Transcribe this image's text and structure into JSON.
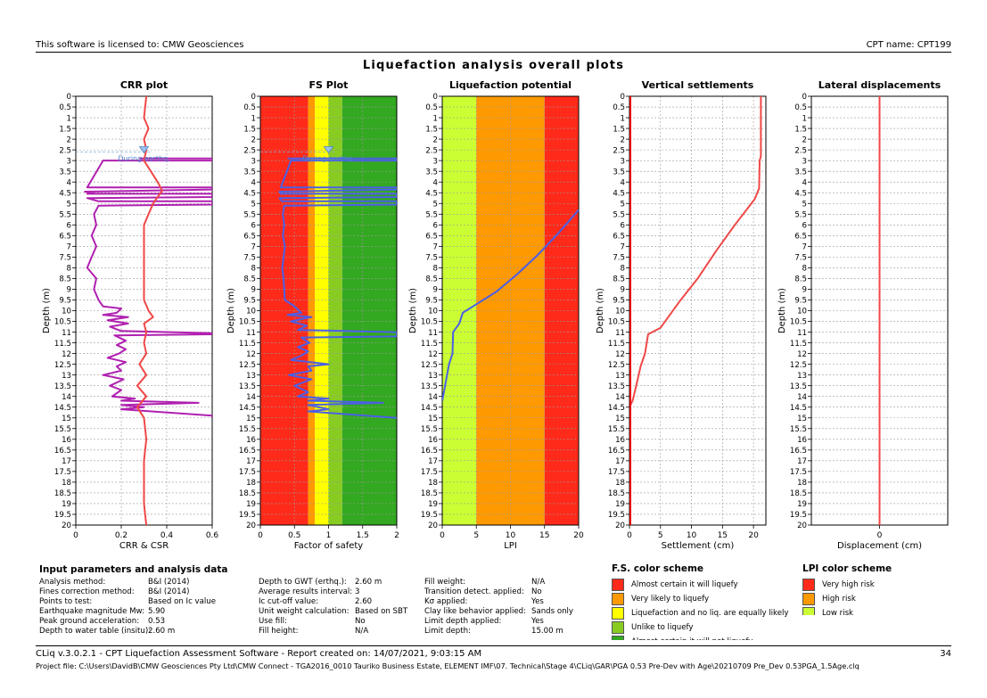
{
  "header": {
    "license": "This software is licensed to: CMW Geosciences",
    "cpt_name": "CPT name: CPT199",
    "title": "Liquefaction analysis overall plots"
  },
  "depth_ticks": [
    "0",
    "0.5",
    "1",
    "1.5",
    "2",
    "2.5",
    "3",
    "3.5",
    "4",
    "4.5",
    "5",
    "5.5",
    "6",
    "6.5",
    "7",
    "7.5",
    "8",
    "8.5",
    "9",
    "9.5",
    "10",
    "10.5",
    "11",
    "11.5",
    "12",
    "12.5",
    "13",
    "13.5",
    "14",
    "14.5",
    "15",
    "15.5",
    "16",
    "16.5",
    "17",
    "17.5",
    "18",
    "18.5",
    "19",
    "19.5",
    "20"
  ],
  "gwt_label": "During earthq.",
  "chart_data": [
    {
      "type": "line",
      "title": "CRR plot",
      "xlabel": "CRR & CSR",
      "ylabel": "Depth (m)",
      "xlim": [
        0,
        0.6
      ],
      "ylim": [
        0,
        20
      ],
      "x_ticks": [
        "0",
        "0.2",
        "0.4",
        "0.6"
      ],
      "grid": true,
      "series": [
        {
          "color": "#b020b0",
          "points": [
            [
              0.28,
              2.9
            ],
            [
              0.6,
              2.9
            ],
            [
              0.6,
              3.0
            ],
            [
              0.12,
              3.0
            ],
            [
              0.05,
              4.25
            ],
            [
              0.6,
              4.25
            ],
            [
              0.6,
              4.35
            ],
            [
              0.04,
              4.45
            ],
            [
              0.08,
              4.5
            ],
            [
              0.05,
              4.55
            ],
            [
              0.6,
              4.55
            ],
            [
              0.6,
              4.7
            ],
            [
              0.05,
              4.75
            ],
            [
              0.1,
              4.9
            ],
            [
              0.6,
              4.9
            ],
            [
              0.6,
              5.05
            ],
            [
              0.1,
              5.1
            ],
            [
              0.08,
              5.5
            ],
            [
              0.09,
              6
            ],
            [
              0.07,
              6.5
            ],
            [
              0.09,
              7
            ],
            [
              0.07,
              7.5
            ],
            [
              0.05,
              8
            ],
            [
              0.09,
              8.5
            ],
            [
              0.08,
              9
            ],
            [
              0.1,
              9.5
            ],
            [
              0.12,
              9.8
            ],
            [
              0.2,
              9.9
            ],
            [
              0.18,
              10.1
            ],
            [
              0.12,
              10.2
            ],
            [
              0.23,
              10.3
            ],
            [
              0.14,
              10.45
            ],
            [
              0.23,
              10.6
            ],
            [
              0.15,
              10.75
            ],
            [
              0.2,
              10.95
            ],
            [
              0.6,
              11.05
            ],
            [
              0.6,
              11.1
            ],
            [
              0.17,
              11.15
            ],
            [
              0.22,
              11.4
            ],
            [
              0.18,
              11.6
            ],
            [
              0.22,
              11.8
            ],
            [
              0.19,
              12
            ],
            [
              0.14,
              12.2
            ],
            [
              0.22,
              12.4
            ],
            [
              0.18,
              12.6
            ],
            [
              0.2,
              12.8
            ],
            [
              0.12,
              13
            ],
            [
              0.21,
              13.2
            ],
            [
              0.15,
              13.5
            ],
            [
              0.2,
              13.7
            ],
            [
              0.16,
              14
            ],
            [
              0.26,
              14.1
            ],
            [
              0.2,
              14.2
            ],
            [
              0.54,
              14.3
            ],
            [
              0.2,
              14.4
            ],
            [
              0.3,
              14.5
            ],
            [
              0.2,
              14.6
            ],
            [
              0.6,
              14.9
            ],
            [
              0.6,
              15.0
            ]
          ]
        },
        {
          "color": "#f04848",
          "points": [
            [
              0.31,
              0
            ],
            [
              0.3,
              1
            ],
            [
              0.32,
              1.5
            ],
            [
              0.3,
              2
            ],
            [
              0.31,
              2.5
            ],
            [
              0.3,
              3
            ],
            [
              0.33,
              3.5
            ],
            [
              0.36,
              4
            ],
            [
              0.38,
              4.4
            ],
            [
              0.34,
              5
            ],
            [
              0.3,
              6
            ],
            [
              0.3,
              7
            ],
            [
              0.3,
              8
            ],
            [
              0.3,
              9
            ],
            [
              0.3,
              9.5
            ],
            [
              0.32,
              10
            ],
            [
              0.34,
              10.3
            ],
            [
              0.3,
              10.6
            ],
            [
              0.31,
              11
            ],
            [
              0.3,
              11.5
            ],
            [
              0.31,
              12
            ],
            [
              0.28,
              12.5
            ],
            [
              0.31,
              13
            ],
            [
              0.27,
              13.5
            ],
            [
              0.31,
              14
            ],
            [
              0.27,
              14.5
            ],
            [
              0.3,
              15
            ],
            [
              0.31,
              16
            ],
            [
              0.3,
              17
            ],
            [
              0.3,
              18
            ],
            [
              0.3,
              19
            ],
            [
              0.31,
              20
            ]
          ]
        }
      ]
    },
    {
      "type": "line",
      "title": "FS Plot",
      "xlabel": "Factor of safety",
      "ylabel": "Depth (m)",
      "xlim": [
        0,
        2
      ],
      "ylim": [
        0,
        20
      ],
      "x_ticks": [
        "0",
        "0.5",
        "1",
        "1.5",
        "2"
      ],
      "bands": [
        {
          "from": 0,
          "to": 0.7,
          "color": "#ff2a1a"
        },
        {
          "from": 0.7,
          "to": 0.8,
          "color": "#ff9900"
        },
        {
          "from": 0.8,
          "to": 1.0,
          "color": "#ffff00"
        },
        {
          "from": 1.0,
          "to": 1.2,
          "color": "#88cc22"
        },
        {
          "from": 1.2,
          "to": 2.0,
          "color": "#33a821"
        }
      ],
      "series": [
        {
          "color": "#4b5fe6",
          "points": [
            [
              0.4,
              2.9
            ],
            [
              2,
              2.9
            ],
            [
              2,
              3.0
            ],
            [
              0.45,
              3.0
            ],
            [
              0.3,
              4.25
            ],
            [
              2,
              4.25
            ],
            [
              2,
              4.35
            ],
            [
              0.28,
              4.45
            ],
            [
              0.3,
              4.55
            ],
            [
              2,
              4.55
            ],
            [
              2,
              4.7
            ],
            [
              0.28,
              4.75
            ],
            [
              0.32,
              4.9
            ],
            [
              2,
              4.9
            ],
            [
              2,
              5.05
            ],
            [
              0.35,
              5.1
            ],
            [
              0.33,
              5.5
            ],
            [
              0.35,
              6
            ],
            [
              0.33,
              6.5
            ],
            [
              0.36,
              7
            ],
            [
              0.34,
              7.5
            ],
            [
              0.32,
              8
            ],
            [
              0.34,
              8.5
            ],
            [
              0.35,
              9
            ],
            [
              0.36,
              9.5
            ],
            [
              0.5,
              9.8
            ],
            [
              0.6,
              10.1
            ],
            [
              0.4,
              10.2
            ],
            [
              0.75,
              10.3
            ],
            [
              0.45,
              10.5
            ],
            [
              0.68,
              10.7
            ],
            [
              0.55,
              10.9
            ],
            [
              2,
              11.0
            ],
            [
              2,
              11.2
            ],
            [
              0.6,
              11.25
            ],
            [
              0.72,
              11.5
            ],
            [
              0.55,
              11.7
            ],
            [
              0.7,
              11.9
            ],
            [
              0.6,
              12.1
            ],
            [
              0.45,
              12.3
            ],
            [
              1.0,
              12.5
            ],
            [
              0.7,
              12.6
            ],
            [
              0.75,
              12.8
            ],
            [
              0.42,
              13.0
            ],
            [
              0.75,
              13.2
            ],
            [
              0.5,
              13.5
            ],
            [
              0.7,
              13.8
            ],
            [
              0.55,
              14.0
            ],
            [
              1.0,
              14.1
            ],
            [
              0.7,
              14.2
            ],
            [
              1.8,
              14.3
            ],
            [
              0.7,
              14.4
            ],
            [
              1.0,
              14.6
            ],
            [
              0.7,
              14.7
            ],
            [
              2,
              15.0
            ]
          ]
        }
      ]
    },
    {
      "type": "line",
      "title": "Liquefaction potential",
      "xlabel": "LPI",
      "ylabel": "Depth (m)",
      "xlim": [
        0,
        20
      ],
      "ylim": [
        0,
        20
      ],
      "x_ticks": [
        "0",
        "5",
        "10",
        "15",
        "20"
      ],
      "bands": [
        {
          "from": 0,
          "to": 5,
          "color": "#ccff33"
        },
        {
          "from": 5,
          "to": 15,
          "color": "#ff9900"
        },
        {
          "from": 15,
          "to": 20,
          "color": "#ff2a1a"
        }
      ],
      "series": [
        {
          "color": "#4b5fe6",
          "points": [
            [
              20,
              5.3
            ],
            [
              17,
              6.4
            ],
            [
              14,
              7.4
            ],
            [
              11,
              8.3
            ],
            [
              8,
              9.1
            ],
            [
              5,
              9.7
            ],
            [
              3,
              10.1
            ],
            [
              2.5,
              10.6
            ],
            [
              1.6,
              11.0
            ],
            [
              1.5,
              12.0
            ],
            [
              1.0,
              12.5
            ],
            [
              0.7,
              13.0
            ],
            [
              0.3,
              13.7
            ],
            [
              0,
              14.2
            ]
          ]
        }
      ]
    },
    {
      "type": "line",
      "title": "Vertical settlements",
      "xlabel": "Settlement (cm)",
      "ylabel": "Depth (m)",
      "xlim": [
        0,
        22
      ],
      "ylim": [
        0,
        20
      ],
      "x_ticks": [
        "0",
        "5",
        "10",
        "15",
        "20"
      ],
      "series": [
        {
          "color": "#f04848",
          "points": [
            [
              21.2,
              0
            ],
            [
              21.2,
              2.8
            ],
            [
              21.0,
              3.0
            ],
            [
              20.9,
              4.3
            ],
            [
              20.2,
              4.8
            ],
            [
              17,
              6
            ],
            [
              14,
              7.2
            ],
            [
              11,
              8.5
            ],
            [
              8,
              9.6
            ],
            [
              5,
              10.8
            ],
            [
              3,
              11.1
            ],
            [
              2.5,
              12.0
            ],
            [
              1.8,
              12.6
            ],
            [
              1.0,
              13.6
            ],
            [
              0.5,
              14.2
            ],
            [
              0,
              14.5
            ],
            [
              0,
              20
            ]
          ]
        },
        {
          "color": "#e00000",
          "points": [
            [
              0,
              0
            ],
            [
              0,
              20
            ]
          ]
        }
      ]
    },
    {
      "type": "line",
      "title": "Lateral displacements",
      "xlabel": "Displacement (cm)",
      "ylabel": "Depth (m)",
      "xlim": [
        -1,
        1
      ],
      "ylim": [
        0,
        20
      ],
      "x_ticks": [
        "0"
      ],
      "series": [
        {
          "color": "#f04848",
          "points": [
            [
              0,
              0
            ],
            [
              0,
              20
            ]
          ]
        }
      ]
    }
  ],
  "input_params": {
    "title": "Input parameters and analysis data",
    "col1": [
      {
        "k": "Analysis method:",
        "v": "B&I (2014)"
      },
      {
        "k": "Fines correction method:",
        "v": "B&I (2014)"
      },
      {
        "k": "Points to test:",
        "v": "Based on Ic value"
      },
      {
        "k": "Earthquake magnitude Mw:",
        "v": "5.90"
      },
      {
        "k": "Peak ground acceleration:",
        "v": "0.53"
      },
      {
        "k": "Depth to water table (insitu):",
        "v": "2.60 m"
      }
    ],
    "col2": [
      {
        "k": "Depth to GWT (erthq.):",
        "v": "2.60 m"
      },
      {
        "k": "Average results interval:",
        "v": "3"
      },
      {
        "k": "Ic cut-off value:",
        "v": "2.60"
      },
      {
        "k": "Unit weight calculation:",
        "v": "Based on SBT"
      },
      {
        "k": "Use fill:",
        "v": "No"
      },
      {
        "k": "Fill height:",
        "v": "N/A"
      }
    ],
    "col3": [
      {
        "k": "Fill weight:",
        "v": "N/A"
      },
      {
        "k": "Transition detect. applied:",
        "v": "No"
      },
      {
        "k": "Kσ applied:",
        "v": "Yes"
      },
      {
        "k": "Clay like behavior applied:",
        "v": "Sands only"
      },
      {
        "k": "Limit depth applied:",
        "v": "Yes"
      },
      {
        "k": "Limit depth:",
        "v": "15.00 m"
      }
    ]
  },
  "fs_scheme": {
    "title": "F.S. color scheme",
    "items": [
      {
        "label": "Almost certain it will liquefy",
        "color": "#ff2a1a"
      },
      {
        "label": "Very likely to liquefy",
        "color": "#ff9900"
      },
      {
        "label": "Liquefaction and no liq. are equally likely",
        "color": "#ffff00"
      },
      {
        "label": "Unlike to liquefy",
        "color": "#88cc22"
      },
      {
        "label": "Almost certain it will not liquefy",
        "color": "#33a821"
      }
    ]
  },
  "lpi_scheme": {
    "title": "LPI color scheme",
    "items": [
      {
        "label": "Very high risk",
        "color": "#ff2a1a"
      },
      {
        "label": "High risk",
        "color": "#ff9900"
      },
      {
        "label": "Low risk",
        "color": "#ccff33"
      }
    ]
  },
  "footer": {
    "report": "CLiq v.3.0.2.1 - CPT Liquefaction Assessment Software - Report created on: 14/07/2021, 9:03:15 AM",
    "page": "34",
    "project": "Project file: C:\\Users\\DavidB\\CMW Geosciences Pty Ltd\\CMW Connect - TGA2016_0010 Tauriko Business Estate, ELEMENT IMF\\07. Technical\\Stage 4\\CLiq\\GAR\\PGA 0.53 Pre-Dev with Age\\20210709 Pre_Dev 0.53PGA_1.5Age.clq"
  }
}
